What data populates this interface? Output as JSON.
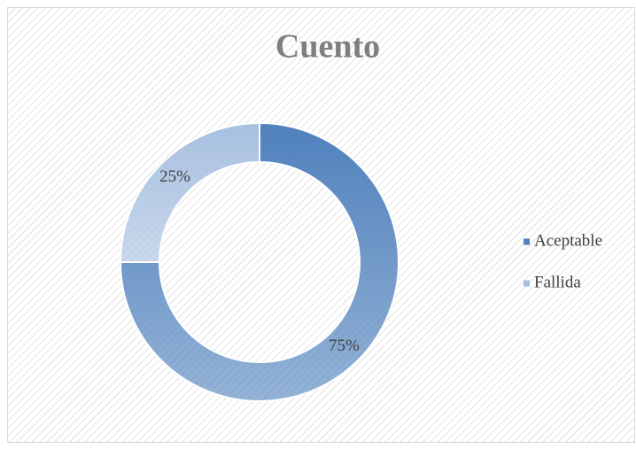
{
  "chart_data": {
    "type": "doughnut",
    "title": "Cuento",
    "categories": [
      "Aceptable",
      "Fallida"
    ],
    "values": [
      75,
      25
    ],
    "value_labels": [
      "75%",
      "25%"
    ],
    "colors": [
      "#4f81bd",
      "#a7c0e0"
    ],
    "legend": "right"
  }
}
